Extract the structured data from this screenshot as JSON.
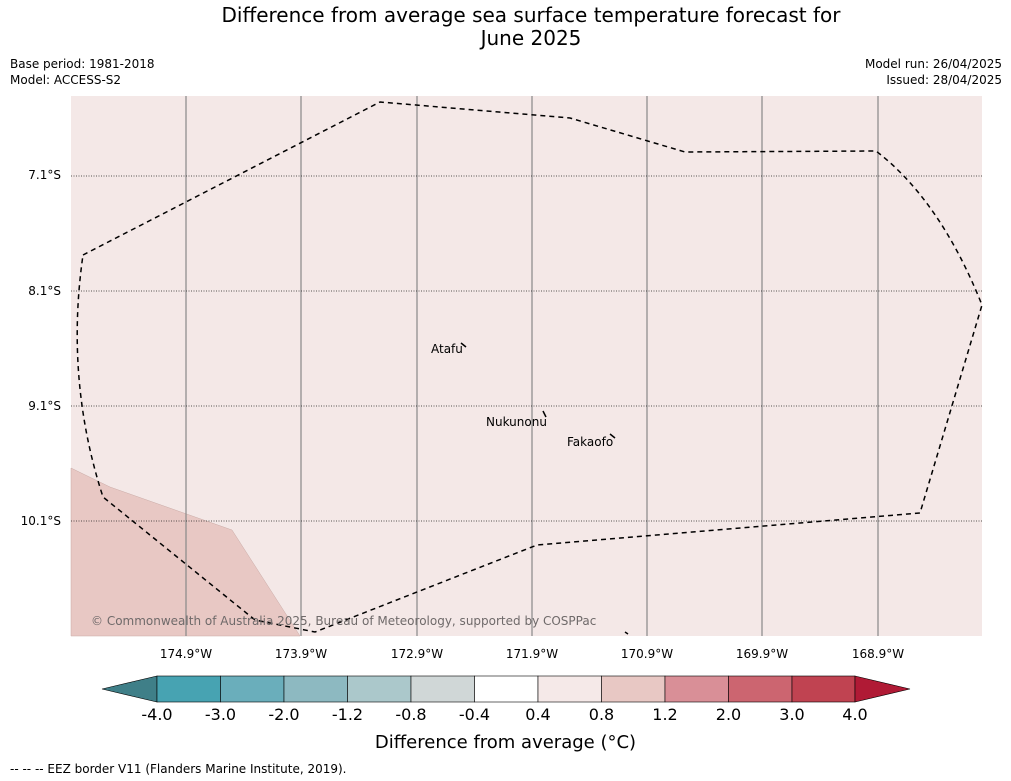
{
  "title": "Difference from average sea surface temperature forecast for June 2025",
  "title_line1": "Difference from average sea surface temperature forecast for",
  "title_line2": "June 2025",
  "base_period": "Base period: 1981-2018",
  "model": "Model: ACCESS-S2",
  "model_run": "Model run: 26/04/2025",
  "issued": "Issued: 28/04/2025",
  "latitude_labels": [
    "7.1°S",
    "8.1°S",
    "9.1°S",
    "10.1°S"
  ],
  "longitude_labels": [
    "174.9°W",
    "173.9°W",
    "172.9°W",
    "171.9°W",
    "170.9°W",
    "169.9°W",
    "168.9°W"
  ],
  "places": [
    "Atafu",
    "Nukunonu",
    "Fakaofo"
  ],
  "copyright": "© Commonwealth of Australia 2025, Bureau of Meteorology, supported by COSPPac",
  "colorbar": {
    "ticks": [
      "-4.0",
      "-3.0",
      "-2.0",
      "-1.2",
      "-0.8",
      "-0.4",
      "0.4",
      "0.8",
      "1.2",
      "2.0",
      "3.0",
      "4.0"
    ],
    "colors": [
      "#3f7f88",
      "#47a3b2",
      "#6aaebb",
      "#8db9c1",
      "#abc8cb",
      "#d0d7d7",
      "#ffffff",
      "#f5e9e8",
      "#e8c8c4",
      "#d98f97",
      "#cc6570",
      "#c04351",
      "#b01a35"
    ],
    "title": "Difference from average (°C)"
  },
  "legend_text": "--  --  -- EEZ border V11 (Flanders Marine Institute, 2019).",
  "map_colors": {
    "ocean_0_4_to_0_8": "#f4e8e7",
    "ocean_0_8_to_1_2": "#e8c8c4"
  }
}
